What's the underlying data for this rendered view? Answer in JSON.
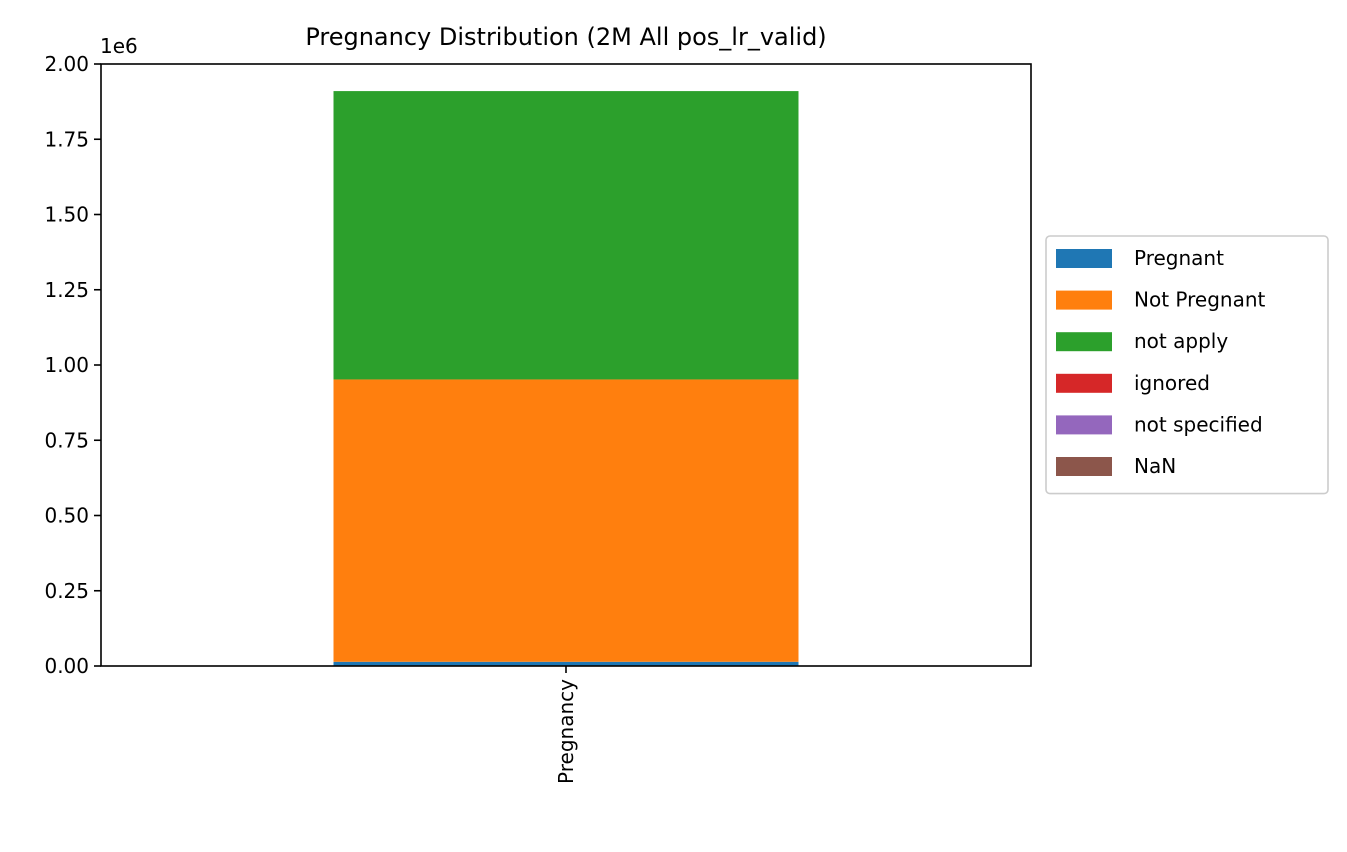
{
  "chart_data": {
    "type": "bar",
    "stacked": true,
    "title": "Pregnancy Distribution (2M All pos_lr_valid)",
    "categories": [
      "Pregnancy"
    ],
    "xlabel": "",
    "ylabel": "",
    "ylim": [
      0,
      2000000
    ],
    "yticks": [
      0,
      250000,
      500000,
      750000,
      1000000,
      1250000,
      1500000,
      1750000,
      2000000
    ],
    "ytick_labels": [
      "0.00",
      "0.25",
      "0.50",
      "0.75",
      "1.00",
      "1.25",
      "1.50",
      "1.75",
      "2.00"
    ],
    "y_offset_label": "1e6",
    "grid": false,
    "legend_position": "center-right outside",
    "series": [
      {
        "name": "Pregnant",
        "color": "#1f77b4",
        "values": [
          14000
        ]
      },
      {
        "name": "Not Pregnant",
        "color": "#ff7f0e",
        "values": [
          938000
        ]
      },
      {
        "name": "not apply",
        "color": "#2ca02c",
        "values": [
          958000
        ]
      },
      {
        "name": "ignored",
        "color": "#d62728",
        "values": [
          0
        ]
      },
      {
        "name": "not specified",
        "color": "#9467bd",
        "values": [
          0
        ]
      },
      {
        "name": "NaN",
        "color": "#8c564b",
        "values": [
          0
        ]
      }
    ]
  }
}
